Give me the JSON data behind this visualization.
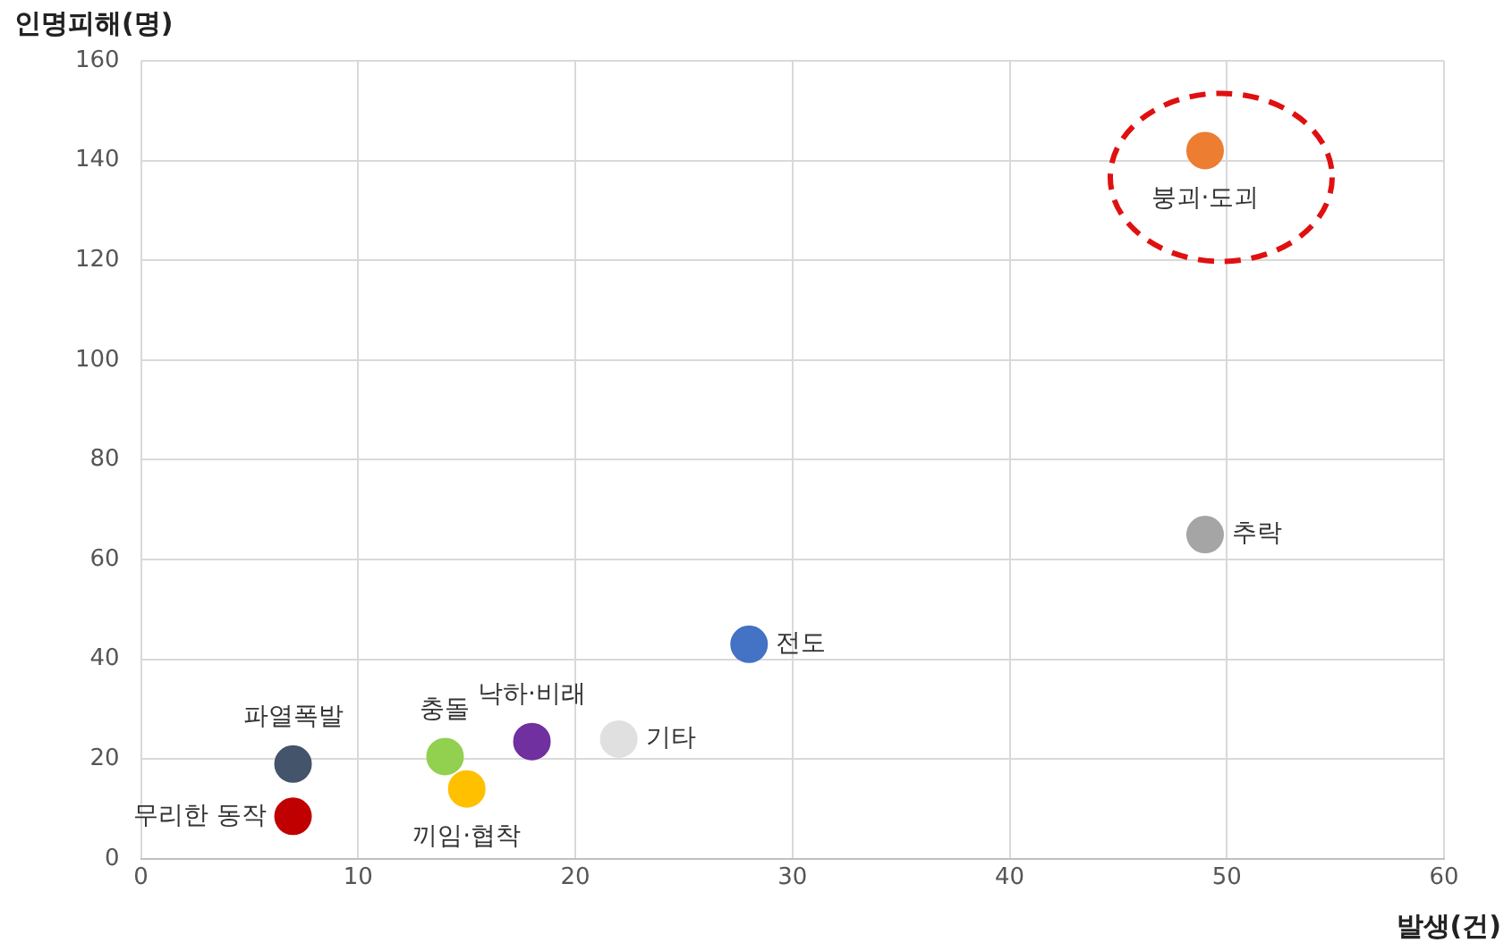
{
  "chart_data": {
    "type": "scatter",
    "xlabel": "발생(건)",
    "ylabel": "인명피해(명)",
    "xlim": [
      0,
      60
    ],
    "xticks": [
      0,
      10,
      20,
      30,
      40,
      50,
      60
    ],
    "ylim": [
      0,
      160
    ],
    "yticks": [
      0,
      20,
      40,
      60,
      80,
      100,
      120,
      140,
      160
    ],
    "grid": true,
    "legend": false,
    "marker": "circle",
    "series": [
      {
        "name": "붕괴·도괴",
        "color": "#ed7d31",
        "x": [
          49
        ],
        "values": [
          142
        ]
      },
      {
        "name": "추락",
        "color": "#a5a5a5",
        "x": [
          49
        ],
        "values": [
          65
        ]
      },
      {
        "name": "전도",
        "color": "#4472c4",
        "x": [
          28
        ],
        "values": [
          43
        ]
      },
      {
        "name": "기타",
        "color": "#e0e0e0",
        "x": [
          22
        ],
        "values": [
          24
        ]
      },
      {
        "name": "낙하·비래",
        "color": "#7030a0",
        "x": [
          18
        ],
        "values": [
          23.5
        ]
      },
      {
        "name": "충돌",
        "color": "#92d050",
        "x": [
          14
        ],
        "values": [
          20.5
        ]
      },
      {
        "name": "끼임·협착",
        "color": "#ffc000",
        "x": [
          15
        ],
        "values": [
          14
        ]
      },
      {
        "name": "파열폭발",
        "color": "#44546a",
        "x": [
          7
        ],
        "values": [
          19
        ]
      },
      {
        "name": "무리한 동작",
        "color": "#c00000",
        "x": [
          7
        ],
        "values": [
          8.5
        ]
      }
    ]
  }
}
